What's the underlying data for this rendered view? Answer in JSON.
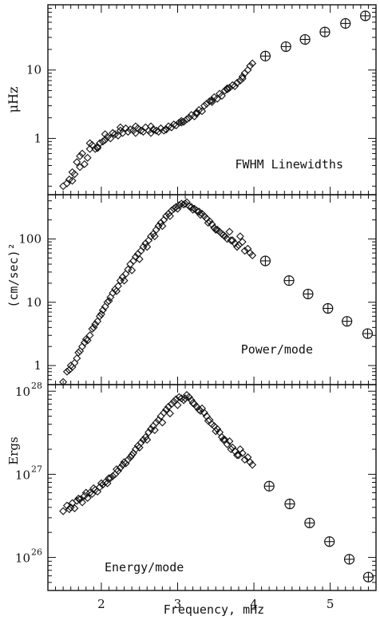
{
  "chart_data": [
    {
      "type": "scatter",
      "ylabel": "μHz",
      "annotation": "FWHM Linewidths",
      "yscale": "log",
      "ylim": [
        0.15,
        90
      ],
      "xlim": [
        1.3,
        5.6
      ],
      "yticks": [
        {
          "value": 1,
          "label": "1"
        },
        {
          "value": 10,
          "label": "10"
        }
      ],
      "series": [
        {
          "marker": "diamond",
          "x": [
            1.5,
            1.55,
            1.58,
            1.62,
            1.65,
            1.68,
            1.72,
            1.75,
            1.78,
            1.82,
            1.85,
            1.88,
            1.92,
            1.95,
            1.98,
            2.02,
            2.05,
            2.08,
            2.12,
            2.15,
            2.18,
            2.22,
            2.25,
            2.28,
            2.32,
            2.35,
            2.38,
            2.42,
            2.45,
            2.48,
            2.52,
            2.55,
            2.58,
            2.62,
            2.65,
            2.68,
            2.72,
            2.75,
            2.78,
            2.82,
            2.85,
            2.88,
            2.92,
            2.95,
            2.98,
            3.02,
            3.05,
            3.08,
            3.12,
            3.15,
            3.18,
            3.22,
            3.25,
            3.28,
            3.32,
            3.35,
            3.38,
            3.42,
            3.45,
            3.48,
            3.52,
            3.55,
            3.58,
            3.62,
            3.65,
            3.68,
            3.72,
            3.75,
            3.78,
            3.82,
            3.85,
            3.88,
            3.92,
            3.95,
            3.98,
            1.62,
            1.72,
            1.85,
            1.95,
            2.05,
            2.25,
            2.45,
            2.65,
            2.85,
            3.05,
            3.25,
            3.45,
            3.65,
            3.85
          ],
          "y": [
            0.2,
            0.22,
            0.25,
            0.24,
            0.3,
            0.45,
            0.38,
            0.6,
            0.42,
            0.52,
            0.7,
            0.8,
            0.7,
            0.75,
            0.85,
            0.9,
            0.95,
            1.05,
            1.0,
            1.2,
            1.15,
            1.1,
            1.3,
            1.2,
            1.4,
            1.25,
            1.35,
            1.3,
            1.2,
            1.4,
            1.3,
            1.25,
            1.45,
            1.3,
            1.2,
            1.35,
            1.3,
            1.25,
            1.4,
            1.3,
            1.35,
            1.5,
            1.45,
            1.6,
            1.55,
            1.7,
            1.8,
            1.75,
            1.9,
            2.0,
            2.2,
            2.1,
            2.4,
            2.6,
            2.5,
            3.0,
            3.2,
            3.5,
            3.4,
            4.0,
            3.8,
            4.5,
            4.2,
            5.0,
            5.2,
            5.5,
            6.0,
            5.8,
            6.5,
            7.0,
            8.0,
            9.0,
            10.0,
            11.5,
            12.5,
            0.32,
            0.55,
            0.85,
            0.72,
            1.15,
            1.45,
            1.5,
            1.5,
            1.35,
            1.7,
            2.3,
            3.6,
            5.4,
            7.5
          ]
        },
        {
          "marker": "circle-plus",
          "x": [
            4.15,
            4.42,
            4.67,
            4.93,
            5.2,
            5.46
          ],
          "y": [
            16,
            22,
            28,
            36,
            48,
            62
          ]
        }
      ]
    },
    {
      "type": "scatter",
      "ylabel": "(cm/sec)²",
      "annotation": "Power/mode",
      "yscale": "log",
      "ylim": [
        0.5,
        500
      ],
      "xlim": [
        1.3,
        5.6
      ],
      "yticks": [
        {
          "value": 1,
          "label": "1"
        },
        {
          "value": 10,
          "label": "10"
        },
        {
          "value": 100,
          "label": "100"
        }
      ],
      "series": [
        {
          "marker": "diamond",
          "x": [
            1.5,
            1.55,
            1.58,
            1.62,
            1.65,
            1.68,
            1.72,
            1.75,
            1.78,
            1.82,
            1.85,
            1.88,
            1.92,
            1.95,
            1.98,
            2.02,
            2.05,
            2.08,
            2.12,
            2.15,
            2.18,
            2.22,
            2.25,
            2.28,
            2.32,
            2.35,
            2.38,
            2.42,
            2.45,
            2.48,
            2.52,
            2.55,
            2.58,
            2.62,
            2.65,
            2.68,
            2.72,
            2.75,
            2.78,
            2.82,
            2.85,
            2.88,
            2.92,
            2.95,
            2.98,
            3.02,
            3.05,
            3.08,
            3.12,
            3.15,
            3.18,
            3.22,
            3.25,
            3.28,
            3.32,
            3.35,
            3.38,
            3.42,
            3.45,
            3.48,
            3.52,
            3.55,
            3.58,
            3.62,
            3.65,
            3.68,
            3.72,
            3.75,
            3.78,
            3.82,
            3.85,
            3.88,
            3.92,
            3.95,
            3.98,
            1.6,
            1.7,
            1.8,
            1.9,
            2.0,
            2.1,
            2.2,
            2.3,
            2.4,
            2.5,
            2.6,
            2.7,
            2.8,
            2.9,
            3.0,
            3.1,
            3.2,
            3.3,
            3.4,
            3.5,
            3.6,
            3.7,
            3.8
          ],
          "y": [
            0.55,
            0.8,
            0.85,
            0.95,
            1.1,
            1.3,
            1.7,
            2.0,
            2.3,
            2.5,
            3.0,
            3.8,
            4.5,
            5.0,
            6.0,
            7.5,
            8.5,
            10.0,
            12.0,
            14.0,
            16.0,
            18.0,
            22.0,
            25.0,
            28.0,
            33.0,
            40.0,
            45.0,
            52.0,
            58.0,
            65.0,
            75.0,
            85.0,
            95.0,
            110.0,
            120.0,
            140.0,
            160.0,
            180.0,
            200.0,
            230.0,
            250.0,
            280.0,
            300.0,
            320.0,
            340.0,
            360.0,
            350.0,
            380.0,
            330.0,
            320.0,
            300.0,
            280.0,
            270.0,
            250.0,
            230.0,
            210.0,
            190.0,
            170.0,
            150.0,
            140.0,
            130.0,
            120.0,
            110.0,
            100.0,
            130.0,
            95.0,
            85.0,
            75.0,
            110.0,
            90.0,
            65.0,
            70.0,
            60.0,
            55.0,
            1.0,
            1.6,
            2.6,
            4.0,
            6.5,
            10.5,
            15.0,
            22.0,
            32.0,
            48.0,
            75.0,
            110.0,
            160.0,
            230.0,
            300.0,
            360.0,
            290.0,
            240.0,
            180.0,
            140.0,
            115.0,
            95.0,
            80.0
          ]
        },
        {
          "marker": "circle-plus",
          "x": [
            4.15,
            4.46,
            4.71,
            4.97,
            5.22,
            5.49
          ],
          "y": [
            45,
            22,
            13.5,
            8,
            5,
            3.2
          ]
        }
      ]
    },
    {
      "type": "scatter",
      "ylabel": "Ergs",
      "annotation": "Energy/mode",
      "yscale": "log",
      "ylim": [
        4e+25,
        1.2e+28
      ],
      "xlim": [
        1.3,
        5.6
      ],
      "xlabel": "Frequency, mHz",
      "xticks": [
        2,
        3,
        4,
        5
      ],
      "yticks": [
        {
          "value": 1e+26,
          "mantissa": "10",
          "exponent": "26"
        },
        {
          "value": 1e+27,
          "mantissa": "10",
          "exponent": "27"
        },
        {
          "value": 1e+28,
          "mantissa": "10",
          "exponent": "28"
        }
      ],
      "series": [
        {
          "marker": "diamond",
          "x": [
            1.5,
            1.55,
            1.58,
            1.62,
            1.65,
            1.68,
            1.72,
            1.75,
            1.78,
            1.82,
            1.85,
            1.88,
            1.92,
            1.95,
            1.98,
            2.02,
            2.05,
            2.08,
            2.12,
            2.15,
            2.18,
            2.22,
            2.25,
            2.28,
            2.32,
            2.35,
            2.38,
            2.42,
            2.45,
            2.48,
            2.52,
            2.55,
            2.58,
            2.62,
            2.65,
            2.68,
            2.72,
            2.75,
            2.78,
            2.82,
            2.85,
            2.88,
            2.92,
            2.95,
            2.98,
            3.02,
            3.05,
            3.08,
            3.12,
            3.15,
            3.18,
            3.22,
            3.25,
            3.28,
            3.32,
            3.35,
            3.38,
            3.42,
            3.45,
            3.48,
            3.52,
            3.55,
            3.58,
            3.62,
            3.65,
            3.68,
            3.72,
            3.75,
            3.78,
            3.82,
            3.85,
            3.88,
            3.92,
            3.95,
            3.98,
            1.6,
            1.7,
            1.8,
            1.9,
            2.0,
            2.1,
            2.2,
            2.3,
            2.4,
            2.5,
            2.6,
            2.7,
            2.8,
            2.9,
            3.0,
            3.1,
            3.2,
            3.3,
            3.4,
            3.5,
            3.6,
            3.7,
            3.8
          ],
          "y": [
            3.6e+26,
            4.2e+26,
            3.8e+26,
            4.5e+26,
            3.9e+26,
            4.8e+26,
            5e+26,
            4.6e+26,
            5.5e+26,
            5.2e+26,
            6e+26,
            5.8e+26,
            6.5e+26,
            6.2e+26,
            7e+26,
            7.5e+26,
            8e+26,
            7.8e+26,
            9e+26,
            9.5e+26,
            1e+27,
            1.1e+27,
            1.2e+27,
            1.3e+27,
            1.35e+27,
            1.5e+27,
            1.6e+27,
            1.8e+27,
            2e+27,
            2.2e+27,
            2.4e+27,
            2.6e+27,
            2.8e+27,
            3.2e+27,
            3.5e+27,
            3.8e+27,
            4.2e+27,
            4.5e+27,
            5e+27,
            5.5e+27,
            6e+27,
            6.5e+27,
            7e+27,
            7.5e+27,
            8e+27,
            8.5e+27,
            8.2e+27,
            7.8e+27,
            9e+27,
            8.5e+27,
            7.8e+27,
            7e+27,
            6.5e+27,
            6e+27,
            6.2e+27,
            5.5e+27,
            5e+27,
            4.5e+27,
            4e+27,
            3.8e+27,
            3.5e+27,
            3.2e+27,
            2.8e+27,
            2.6e+27,
            2.3e+27,
            2.5e+27,
            2.1e+27,
            1.9e+27,
            1.7e+27,
            2e+27,
            1.8e+27,
            1.5e+27,
            1.6e+27,
            1.4e+27,
            1.3e+27,
            4e+26,
            5.1e+26,
            6e+26,
            6.8e+26,
            7.8e+26,
            9e+26,
            1.15e+27,
            1.4e+27,
            1.7e+27,
            2.1e+27,
            2.6e+27,
            3.4e+27,
            4.2e+27,
            5.4e+27,
            6.8e+27,
            8.2e+27,
            7.2e+27,
            5.8e+27,
            4.4e+27,
            3.3e+27,
            2.6e+27,
            2e+27,
            1.7e+27
          ]
        },
        {
          "marker": "circle-plus",
          "x": [
            4.2,
            4.47,
            4.73,
            4.99,
            5.25,
            5.5
          ],
          "y": [
            7.2e+26,
            4.4e+26,
            2.6e+26,
            1.55e+26,
            9.5e+25,
            5.8e+25
          ]
        }
      ]
    }
  ]
}
